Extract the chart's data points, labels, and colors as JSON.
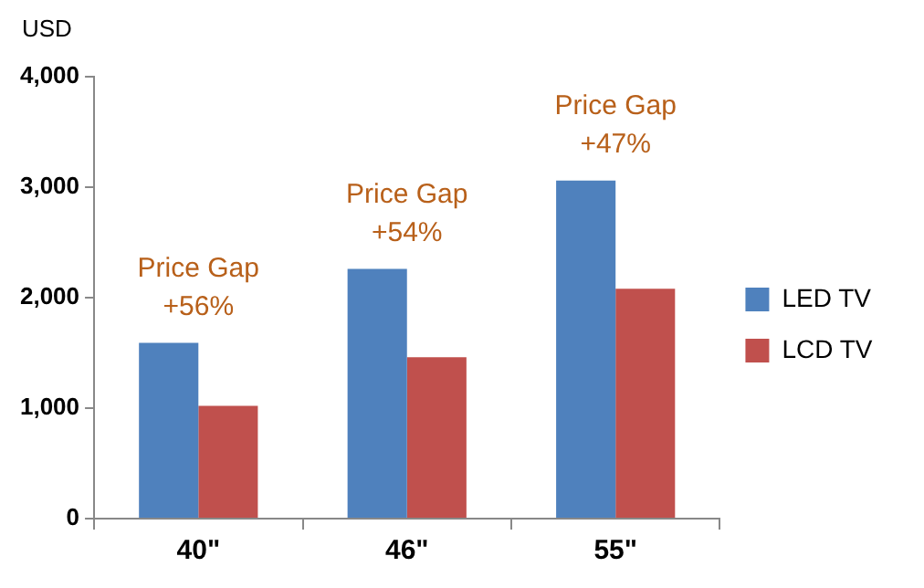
{
  "chart_data": {
    "type": "bar",
    "ylabel": "USD",
    "categories": [
      "40\"",
      "46\"",
      "55\""
    ],
    "series": [
      {
        "name": "LED TV",
        "color": "#4f81bd",
        "values": [
          1590,
          2260,
          3060
        ]
      },
      {
        "name": "LCD TV",
        "color": "#c0504d",
        "values": [
          1020,
          1460,
          2080
        ]
      }
    ],
    "ylim": [
      0,
      4000
    ],
    "yticks": [
      {
        "value": 0,
        "label": "0"
      },
      {
        "value": 1000,
        "label": "1,000"
      },
      {
        "value": 2000,
        "label": "2,000"
      },
      {
        "value": 3000,
        "label": "3,000"
      },
      {
        "value": 4000,
        "label": "4,000"
      }
    ],
    "grid": false,
    "legend": "right",
    "annotations": [
      "Price Gap\n+56%",
      "Price Gap\n+54%",
      "Price Gap\n+47%"
    ]
  }
}
